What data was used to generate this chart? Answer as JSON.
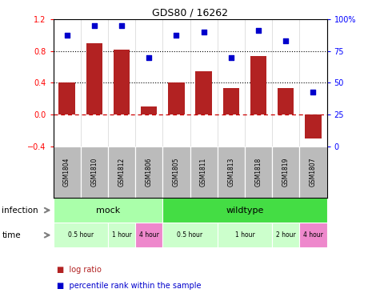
{
  "title": "GDS80 / 16262",
  "samples": [
    "GSM1804",
    "GSM1810",
    "GSM1812",
    "GSM1806",
    "GSM1805",
    "GSM1811",
    "GSM1813",
    "GSM1818",
    "GSM1819",
    "GSM1807"
  ],
  "log_ratio": [
    0.4,
    0.9,
    0.82,
    0.1,
    0.4,
    0.54,
    0.33,
    0.74,
    0.33,
    -0.3
  ],
  "percentile": [
    87,
    95,
    95,
    70,
    87,
    90,
    70,
    91,
    83,
    43
  ],
  "bar_color": "#b22222",
  "dot_color": "#0000cc",
  "ylim_left": [
    -0.4,
    1.2
  ],
  "ylim_right": [
    0,
    100
  ],
  "yticks_left": [
    -0.4,
    0.0,
    0.4,
    0.8,
    1.2
  ],
  "yticks_right": [
    0,
    25,
    50,
    75,
    100
  ],
  "time_groups": [
    {
      "label": "0.5 hour",
      "start": 0,
      "end": 2,
      "color": "#ccffcc"
    },
    {
      "label": "1 hour",
      "start": 2,
      "end": 3,
      "color": "#ccffcc"
    },
    {
      "label": "4 hour",
      "start": 3,
      "end": 4,
      "color": "#ee88cc"
    },
    {
      "label": "0.5 hour",
      "start": 4,
      "end": 6,
      "color": "#ccffcc"
    },
    {
      "label": "1 hour",
      "start": 6,
      "end": 8,
      "color": "#ccffcc"
    },
    {
      "label": "2 hour",
      "start": 8,
      "end": 9,
      "color": "#ccffcc"
    },
    {
      "label": "4 hour",
      "start": 9,
      "end": 10,
      "color": "#ee88cc"
    }
  ],
  "infection_mock_color": "#aaffaa",
  "infection_wildtype_color": "#44dd44",
  "sample_bg_color": "#bbbbbb"
}
